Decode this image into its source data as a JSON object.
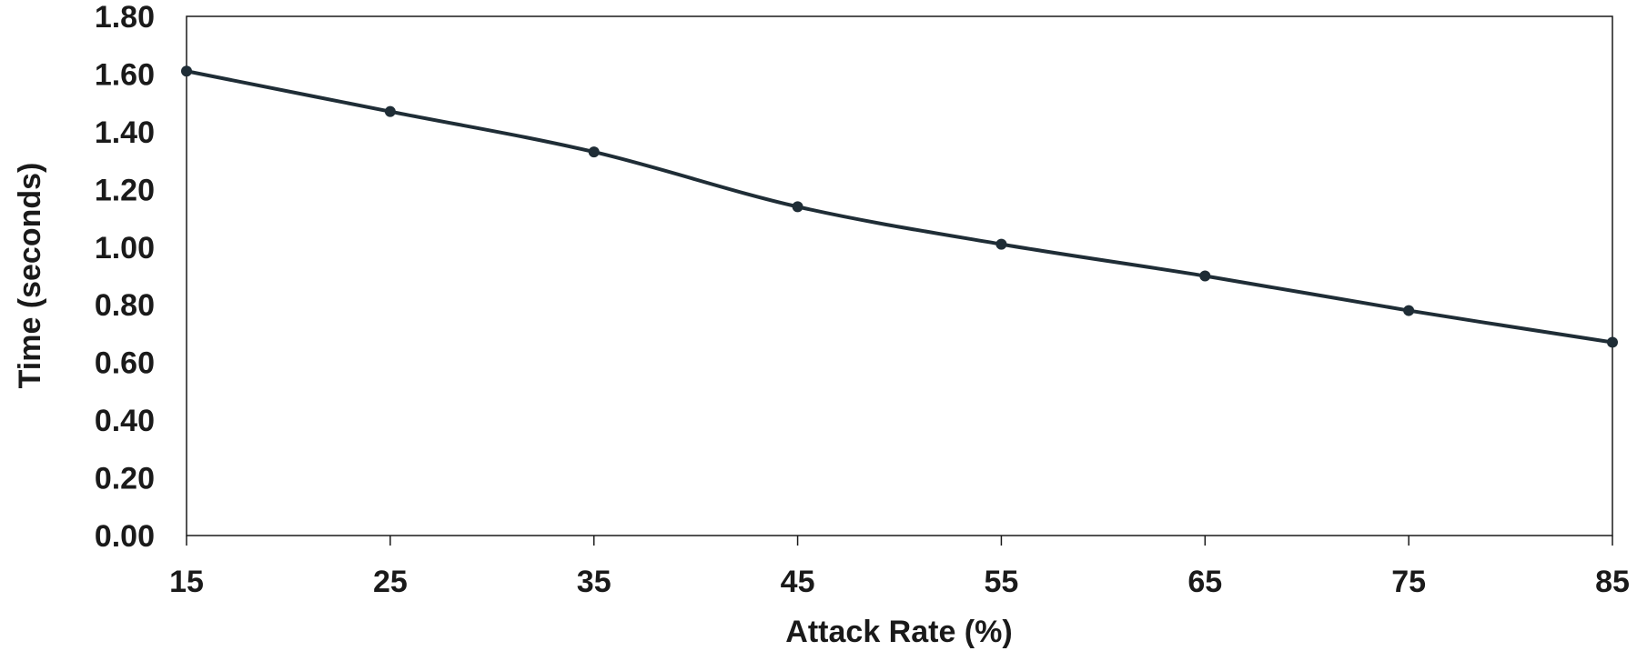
{
  "chart_data": {
    "type": "line",
    "title": "",
    "xlabel": "Attack Rate (%)",
    "ylabel": "Time (seconds)",
    "x": [
      15,
      25,
      35,
      45,
      55,
      65,
      75,
      85
    ],
    "x_tick_labels": [
      "15",
      "25",
      "35",
      "45",
      "55",
      "65",
      "75",
      "85"
    ],
    "y_tick_labels": [
      "0.00",
      "0.20",
      "0.40",
      "0.60",
      "0.80",
      "1.00",
      "1.20",
      "1.40",
      "1.60",
      "1.80"
    ],
    "ylim": [
      0,
      1.8
    ],
    "xlim": [
      15,
      85
    ],
    "grid": false,
    "legend": "none",
    "series": [
      {
        "values": [
          1.61,
          1.47,
          1.33,
          1.14,
          1.01,
          0.9,
          0.78,
          0.67
        ],
        "color": "#1f2d36",
        "smooth": true,
        "markers": true
      }
    ]
  }
}
